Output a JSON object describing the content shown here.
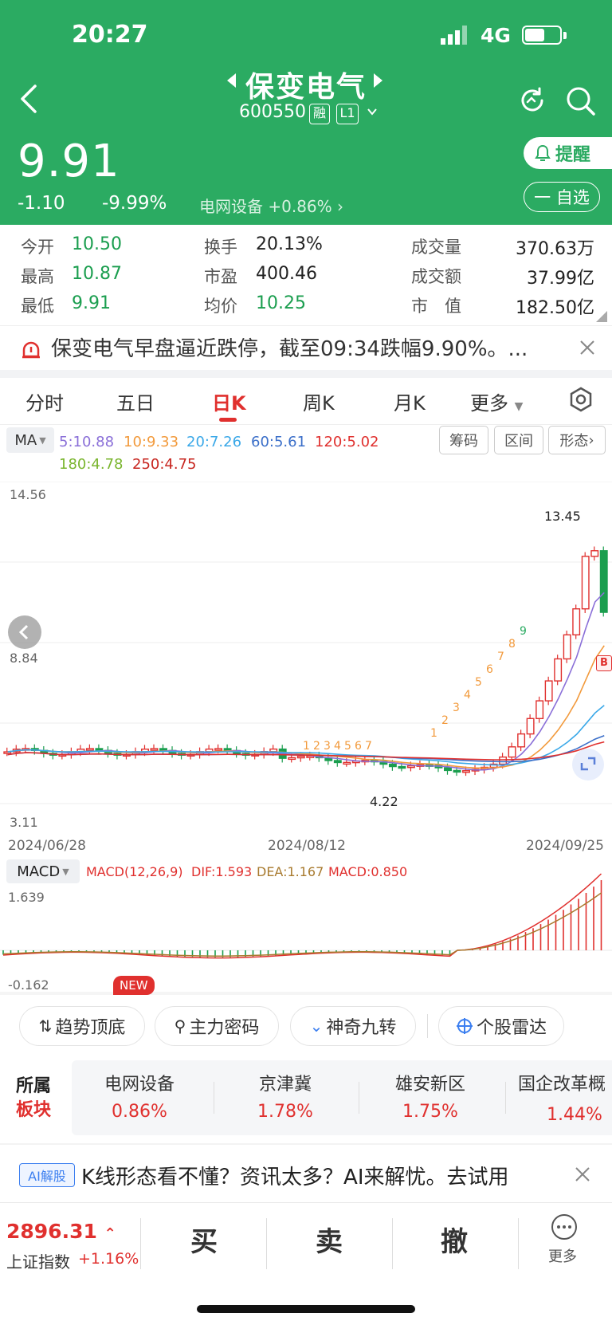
{
  "status_bar": {
    "time": "20:27",
    "network": "4G",
    "battery_percent": 55
  },
  "header": {
    "stock_name": "保变电气",
    "stock_code": "600550",
    "tag_margin": "融",
    "tag_level": "L1",
    "price": "9.91",
    "change": "-1.10",
    "change_pct": "-9.99%",
    "sector_text": "电网设备 +0.86%",
    "remind_label": "提醒",
    "watchlist_label": "一 自选",
    "theme_color": "#2bab62"
  },
  "quote": {
    "open_label": "今开",
    "open": "10.50",
    "high_label": "最高",
    "high": "10.87",
    "low_label": "最低",
    "low": "9.91",
    "turnover_label": "换手",
    "turnover": "20.13%",
    "pe_label": "市盈",
    "pe": "400.46",
    "avg_label": "均价",
    "avg": "10.25",
    "volume_label": "成交量",
    "volume": "370.63万",
    "amount_label": "成交额",
    "amount": "37.99亿",
    "mcap_label": "市　值",
    "mcap": "182.50亿"
  },
  "news": {
    "text": "保变电气早盘逼近跌停，截至09:34跌幅9.90%。..."
  },
  "tabs": [
    "分时",
    "五日",
    "日K",
    "周K",
    "月K",
    "更多"
  ],
  "active_tab": "日K",
  "ma": {
    "button": "MA",
    "items": [
      {
        "text": "5:10.88",
        "color": "#8a6fd8"
      },
      {
        "text": "10:9.33",
        "color": "#f29a3c"
      },
      {
        "text": "20:7.26",
        "color": "#3aa8e8"
      },
      {
        "text": "60:5.61",
        "color": "#3b6fc9"
      },
      {
        "text": "120:5.02",
        "color": "#e0302e"
      },
      {
        "text": "180:4.78",
        "color": "#7ab52e"
      },
      {
        "text": "250:4.75",
        "color": "#c7251f"
      }
    ],
    "tools": [
      "筹码",
      "区间",
      "形态"
    ]
  },
  "chart_data": {
    "type": "candlestick",
    "y_ticks": [
      "14.56",
      "8.84",
      "3.11"
    ],
    "ylim": [
      3.11,
      14.56
    ],
    "x_ticks": [
      "2024/06/28",
      "2024/08/12",
      "2024/09/25"
    ],
    "annotations": {
      "high": "13.45",
      "low": "4.22",
      "buy_marker": "B"
    },
    "sequence_labels": [
      "1",
      "2",
      "3",
      "4",
      "5",
      "6",
      "7",
      "1",
      "2",
      "3",
      "4",
      "5",
      "6",
      "7",
      "8",
      "9"
    ],
    "macd": {
      "button": "MACD",
      "params": "MACD(12,26,9)",
      "dif": "DIF:1.593",
      "dea": "DEA:1.167",
      "macd": "MACD:0.850",
      "ytop": "1.639",
      "ybottom": "-0.162"
    }
  },
  "tools": [
    {
      "label": "趋势顶底",
      "badge": "NEW"
    },
    {
      "label": "主力密码"
    },
    {
      "label": "神奇九转"
    },
    {
      "label": "个股雷达"
    }
  ],
  "sectors": {
    "title_line1": "所属",
    "title_line2": "板块",
    "items": [
      {
        "name": "电网设备",
        "value": "0.86%"
      },
      {
        "name": "京津冀",
        "value": "1.78%"
      },
      {
        "name": "雄安新区",
        "value": "1.75%"
      },
      {
        "name": "国企改革概",
        "value": "1.44%"
      }
    ]
  },
  "ai": {
    "badge": "AI解股",
    "text": "K线形态看不懂？资讯太多？AI来解忧。去试用"
  },
  "bottom": {
    "index_value": "2896.31",
    "index_name": "上证指数",
    "index_change": "+1.16%",
    "buy": "买",
    "sell": "卖",
    "cancel": "撤",
    "more": "更多"
  }
}
